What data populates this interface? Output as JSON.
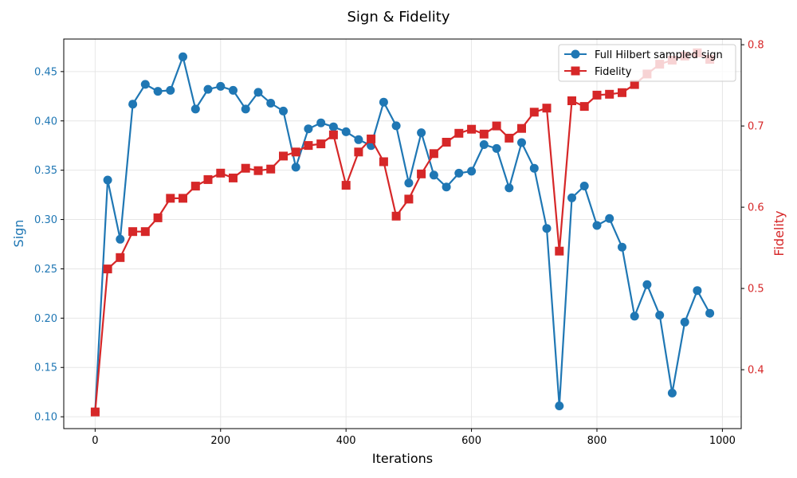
{
  "chart_data": {
    "type": "line",
    "title": "Sign & Fidelity",
    "xlabel": "Iterations",
    "ylabel_left": "Sign",
    "ylabel_right": "Fidelity",
    "xlim": [
      -50,
      1030
    ],
    "ylim_left": [
      0.088,
      0.483
    ],
    "ylim_right": [
      0.3275,
      0.807
    ],
    "xticks": [
      "0",
      "200",
      "400",
      "600",
      "800",
      "1000"
    ],
    "yticks_left": [
      "0.10",
      "0.15",
      "0.20",
      "0.25",
      "0.30",
      "0.35",
      "0.40",
      "0.45"
    ],
    "yticks_right": [
      "0.4",
      "0.5",
      "0.6",
      "0.7",
      "0.8"
    ],
    "grid": true,
    "legend_position": "top-right",
    "colors": {
      "sign": "#1f77b4",
      "fidelity": "#d62728"
    },
    "x": [
      0,
      20,
      40,
      60,
      80,
      100,
      120,
      140,
      160,
      180,
      200,
      220,
      240,
      260,
      280,
      300,
      320,
      340,
      360,
      380,
      400,
      420,
      440,
      460,
      480,
      500,
      520,
      540,
      560,
      580,
      600,
      620,
      640,
      660,
      680,
      700,
      720,
      740,
      760,
      780,
      800,
      820,
      840,
      860,
      880,
      900,
      920,
      940,
      960,
      980
    ],
    "series": [
      {
        "name": "Full Hilbert sampled sign",
        "axis": "left",
        "marker": "circle",
        "values": [
          0.105,
          0.34,
          0.28,
          0.417,
          0.437,
          0.43,
          0.431,
          0.465,
          0.412,
          0.432,
          0.435,
          0.431,
          0.412,
          0.429,
          0.418,
          0.41,
          0.353,
          0.392,
          0.398,
          0.394,
          0.389,
          0.381,
          0.375,
          0.419,
          0.395,
          0.337,
          0.388,
          0.345,
          0.333,
          0.347,
          0.349,
          0.376,
          0.372,
          0.332,
          0.378,
          0.352,
          0.291,
          0.111,
          0.322,
          0.334,
          0.294,
          0.301,
          0.272,
          0.202,
          0.234,
          0.203,
          0.124,
          0.196,
          0.228,
          0.205
        ]
      },
      {
        "name": "Fidelity",
        "axis": "right",
        "marker": "square",
        "values": [
          0.348,
          0.524,
          0.538,
          0.57,
          0.57,
          0.587,
          0.611,
          0.611,
          0.626,
          0.634,
          0.642,
          0.636,
          0.648,
          0.645,
          0.647,
          0.663,
          0.668,
          0.676,
          0.678,
          0.689,
          0.627,
          0.668,
          0.684,
          0.656,
          0.589,
          0.61,
          0.641,
          0.666,
          0.68,
          0.691,
          0.696,
          0.69,
          0.7,
          0.685,
          0.697,
          0.717,
          0.722,
          0.546,
          0.731,
          0.724,
          0.738,
          0.739,
          0.741,
          0.751,
          0.764,
          0.776,
          0.781,
          0.786,
          0.79,
          0.782
        ]
      }
    ]
  }
}
